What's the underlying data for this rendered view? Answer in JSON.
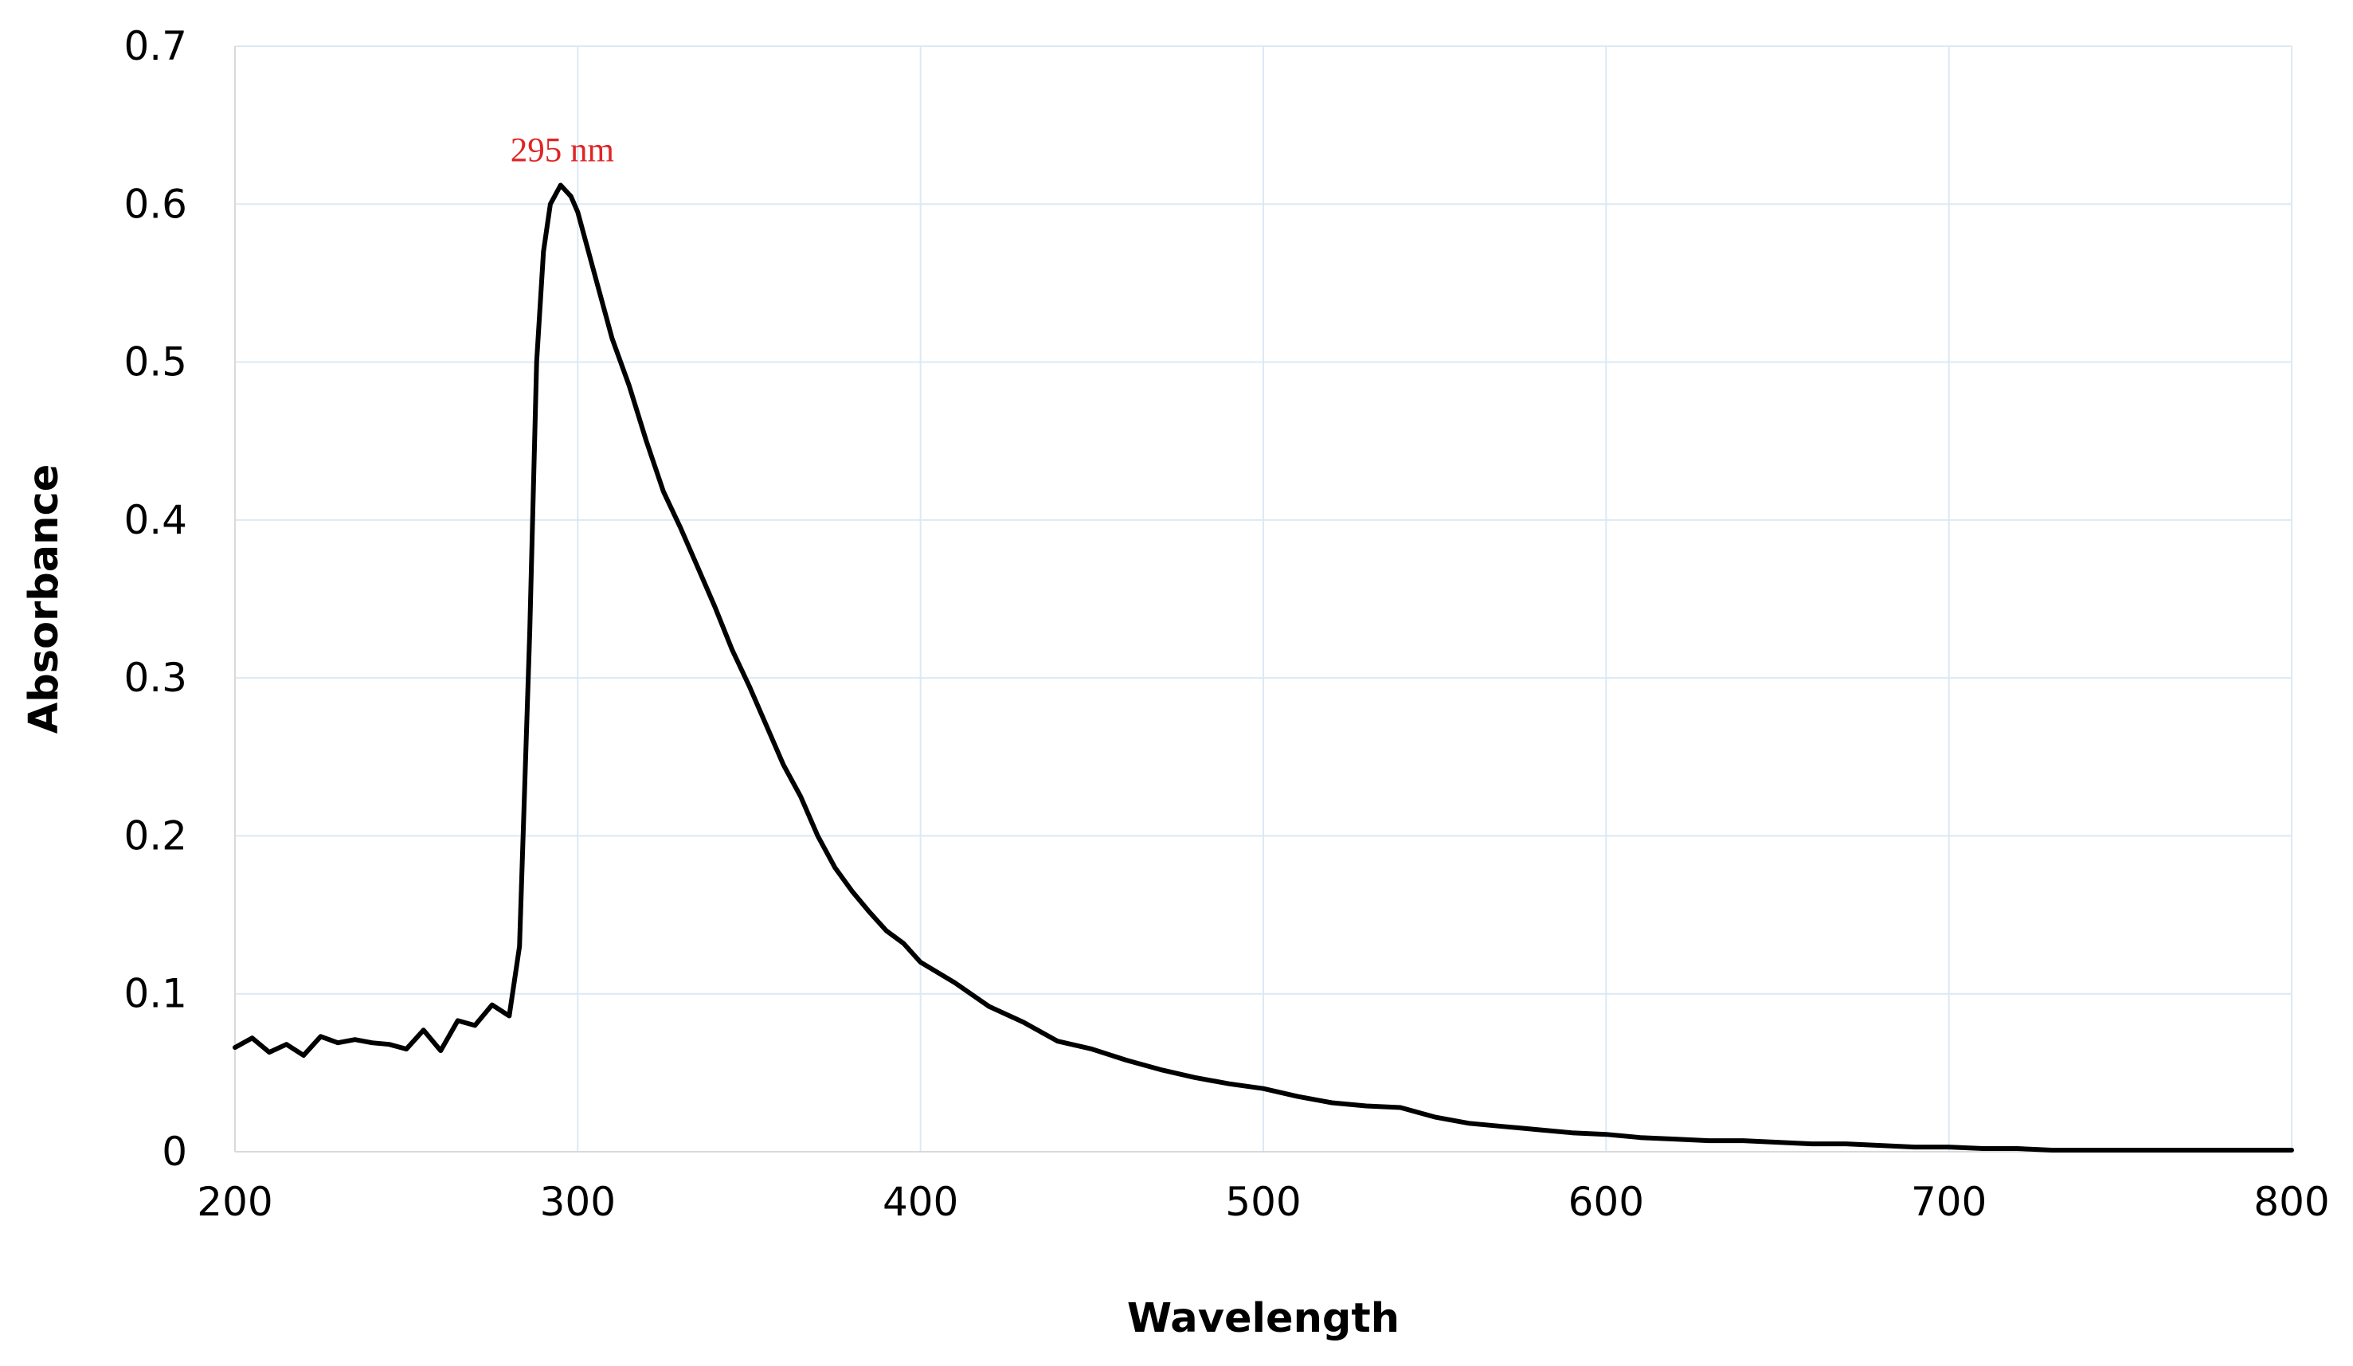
{
  "chart_data": {
    "type": "line",
    "title": "",
    "xlabel": "Wavelength",
    "ylabel": "Absorbance",
    "xlim": [
      200,
      800
    ],
    "ylim": [
      0,
      0.7
    ],
    "x_ticks": [
      200,
      300,
      400,
      500,
      600,
      700,
      800
    ],
    "y_ticks": [
      0,
      0.1,
      0.2,
      0.3,
      0.4,
      0.5,
      0.6,
      0.7
    ],
    "x_tick_labels": [
      "200",
      "300",
      "400",
      "500",
      "600",
      "700",
      "800"
    ],
    "y_tick_labels": [
      "0",
      "0.1",
      "0.2",
      "0.3",
      "0.4",
      "0.5",
      "0.6",
      "0.7"
    ],
    "grid": true,
    "legend": "none",
    "line_color": "#000000",
    "grid_color": "#dbe9f5",
    "annotation_color": "#e02424",
    "annotations": [
      {
        "text": "295 nm",
        "x": 295,
        "y": 0.612
      }
    ],
    "series": [
      {
        "x": [
          200,
          205,
          210,
          215,
          220,
          225,
          230,
          235,
          240,
          245,
          250,
          255,
          260,
          265,
          270,
          275,
          280,
          283,
          286,
          288,
          290,
          292,
          295,
          298,
          300,
          305,
          310,
          315,
          320,
          325,
          330,
          335,
          340,
          345,
          350,
          355,
          360,
          365,
          370,
          375,
          380,
          385,
          390,
          395,
          400,
          410,
          420,
          430,
          440,
          450,
          460,
          470,
          480,
          490,
          500,
          510,
          520,
          530,
          540,
          550,
          560,
          570,
          580,
          590,
          600,
          610,
          620,
          630,
          640,
          650,
          660,
          670,
          680,
          690,
          700,
          710,
          720,
          730,
          740,
          750,
          760,
          770,
          780,
          790,
          800
        ],
        "y": [
          0.066,
          0.072,
          0.063,
          0.068,
          0.061,
          0.073,
          0.069,
          0.071,
          0.069,
          0.068,
          0.065,
          0.077,
          0.064,
          0.083,
          0.08,
          0.093,
          0.086,
          0.13,
          0.33,
          0.5,
          0.57,
          0.6,
          0.612,
          0.605,
          0.595,
          0.555,
          0.515,
          0.485,
          0.45,
          0.418,
          0.395,
          0.37,
          0.345,
          0.318,
          0.295,
          0.27,
          0.245,
          0.225,
          0.2,
          0.18,
          0.165,
          0.152,
          0.14,
          0.132,
          0.12,
          0.107,
          0.092,
          0.082,
          0.07,
          0.065,
          0.058,
          0.052,
          0.047,
          0.043,
          0.04,
          0.035,
          0.031,
          0.029,
          0.028,
          0.022,
          0.018,
          0.016,
          0.014,
          0.012,
          0.011,
          0.009,
          0.008,
          0.007,
          0.007,
          0.006,
          0.005,
          0.005,
          0.004,
          0.003,
          0.003,
          0.002,
          0.002,
          0.001,
          0.001,
          0.001,
          0.001,
          0.001,
          0.001,
          0.001,
          0.001
        ]
      }
    ]
  }
}
